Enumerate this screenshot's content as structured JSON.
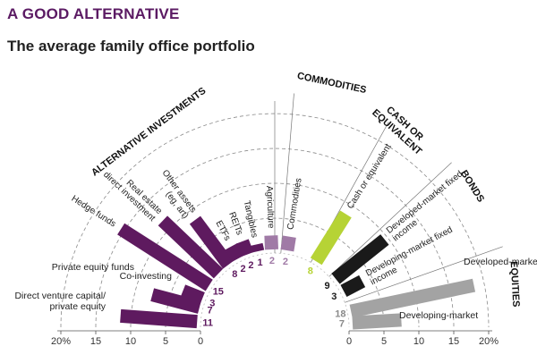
{
  "header": {
    "title": "A GOOD ALTERNATIVE",
    "subtitle": "The average family office portfolio"
  },
  "colors": {
    "purple": "#5e1a5f",
    "light_purple": "#a07aa6",
    "lime": "#b6d335",
    "black": "#1a1a1a",
    "grey": "#a3a3a3",
    "title": "#5b1a63"
  },
  "chart_data": {
    "type": "bar",
    "layout": "semicircular radial bar chart",
    "unit": "%",
    "groups": [
      "ALTERNATIVE INVESTMENTS",
      "COMMODITIES",
      "CASH OR EQUIVALENT",
      "BONDS",
      "EQUITIES"
    ],
    "categories": [
      {
        "label": "Direct venture capital/ private equity",
        "value": 11,
        "value_label": "11",
        "group": "ALTERNATIVE INVESTMENTS",
        "color": "#5e1a5f"
      },
      {
        "label": "Private equity funds",
        "value": 7,
        "value_label": "7",
        "group": "ALTERNATIVE INVESTMENTS",
        "color": "#5e1a5f"
      },
      {
        "label": "Co-investing",
        "value": 3,
        "value_label": "3",
        "group": "ALTERNATIVE INVESTMENTS",
        "color": "#5e1a5f"
      },
      {
        "label": "Hedge funds",
        "value": 15,
        "value_label": "15",
        "group": "ALTERNATIVE INVESTMENTS",
        "color": "#5e1a5f"
      },
      {
        "label": "Real estate direct investment",
        "value": 11,
        "value_label": "",
        "group": "ALTERNATIVE INVESTMENTS",
        "color": "#5e1a5f"
      },
      {
        "label": "Other assets (eg, art)",
        "value": 8,
        "value_label": "8",
        "group": "ALTERNATIVE INVESTMENTS",
        "color": "#5e1a5f"
      },
      {
        "label": "ETFs",
        "value": 2,
        "value_label": "2",
        "group": "ALTERNATIVE INVESTMENTS",
        "color": "#5e1a5f"
      },
      {
        "label": "REITs",
        "value": 2,
        "value_label": "2",
        "group": "ALTERNATIVE INVESTMENTS",
        "color": "#5e1a5f"
      },
      {
        "label": "Tangibles",
        "value": 1,
        "value_label": "1",
        "group": "ALTERNATIVE INVESTMENTS",
        "color": "#5e1a5f"
      },
      {
        "label": "Agriculture",
        "value": 2,
        "value_label": "2",
        "group": "COMMODITIES",
        "color": "#a07aa6"
      },
      {
        "label": "Commodities",
        "value": 2,
        "value_label": "2",
        "group": "COMMODITIES",
        "color": "#a07aa6"
      },
      {
        "label": "Cash or equivalent",
        "value": 8,
        "value_label": "8",
        "group": "CASH OR EQUIVALENT",
        "color": "#b6d335"
      },
      {
        "label": "Developed-market fixed income",
        "value": 9,
        "value_label": "9",
        "group": "BONDS",
        "color": "#1a1a1a"
      },
      {
        "label": "Developing-market fixed income",
        "value": 3,
        "value_label": "3",
        "group": "BONDS",
        "color": "#1a1a1a"
      },
      {
        "label": "Developed-market",
        "value": 18,
        "value_label": "18",
        "group": "EQUITIES",
        "color": "#a3a3a3"
      },
      {
        "label": "Developing-market",
        "value": 7,
        "value_label": "7",
        "group": "EQUITIES",
        "color": "#a3a3a3"
      }
    ],
    "axis": {
      "left_ticks": [
        "20%",
        "15",
        "10",
        "5",
        "0"
      ],
      "right_ticks": [
        "0",
        "5",
        "10",
        "15",
        "20%"
      ],
      "range": [
        0,
        20
      ]
    },
    "grid": true
  }
}
